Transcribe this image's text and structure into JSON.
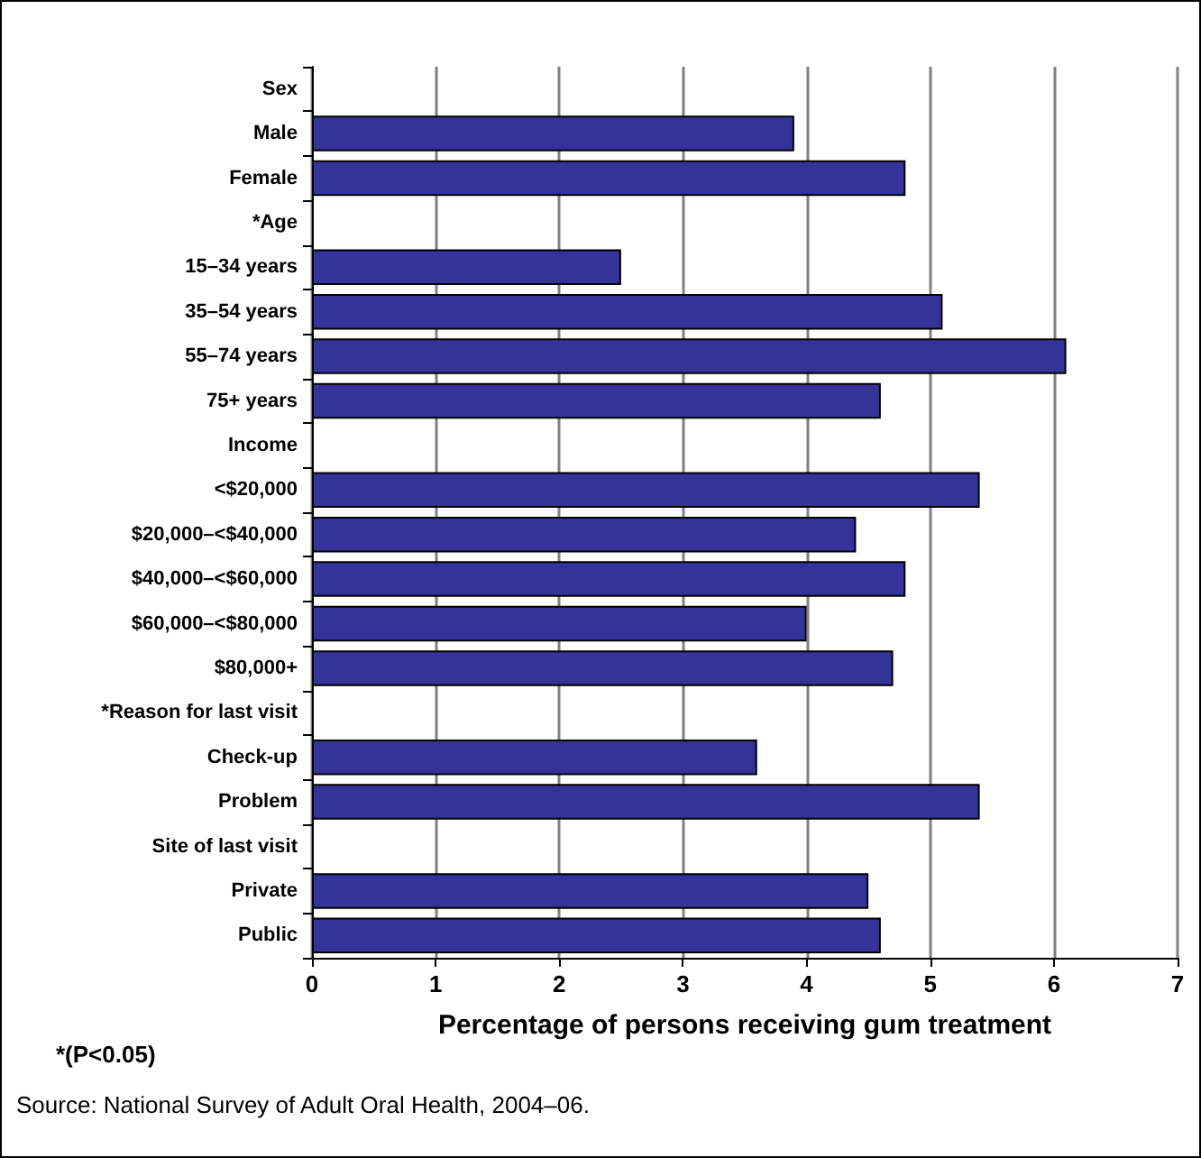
{
  "chart_data": {
    "type": "bar",
    "orientation": "horizontal",
    "xlabel": "Percentage of persons receiving gum treatment",
    "categories": [
      "Sex",
      "Male",
      "Female",
      "*Age",
      "15–34 years",
      "35–54 years",
      "55–74 years",
      "75+ years",
      "Income",
      "<$20,000",
      "$20,000–<$40,000",
      "$40,000–<$60,000",
      "$60,000–<$80,000",
      "$80,000+",
      "*Reason for last visit",
      "Check-up",
      "Problem",
      "Site of last visit",
      "Private",
      "Public"
    ],
    "values": [
      null,
      3.9,
      4.8,
      null,
      2.5,
      5.1,
      6.1,
      4.6,
      null,
      5.4,
      4.4,
      4.8,
      4.0,
      4.7,
      null,
      3.6,
      5.4,
      null,
      4.5,
      4.6
    ],
    "color": "#333399",
    "xlim": [
      0,
      7
    ],
    "xticks": [
      0,
      1,
      2,
      3,
      4,
      5,
      6,
      7
    ],
    "grid": "x",
    "annotations": [
      "*(P<0.05)",
      "Source: National Survey of Adult Oral Health, 2004–06."
    ]
  }
}
